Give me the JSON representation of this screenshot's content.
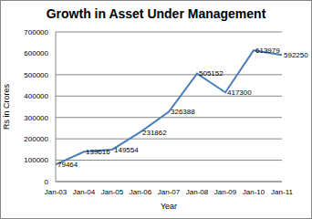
{
  "chart_data": {
    "type": "line",
    "title": "Growth in Asset Under Management",
    "x_label": "Year",
    "y_label": "Rs in Crores",
    "categories": [
      "Jan-03",
      "Jan-04",
      "Jan-05",
      "Jan-06",
      "Jan-07",
      "Jan-08",
      "Jan-09",
      "Jan-10",
      "Jan-11"
    ],
    "values": [
      79464,
      139616,
      149554,
      231862,
      326388,
      505152,
      417300,
      613979,
      592250
    ],
    "color": "#4a7ebb",
    "ylim": [
      0,
      700000
    ],
    "yticks": [
      0,
      100000,
      200000,
      300000,
      400000,
      500000,
      600000,
      700000
    ],
    "grid": true,
    "data_labels": true
  }
}
